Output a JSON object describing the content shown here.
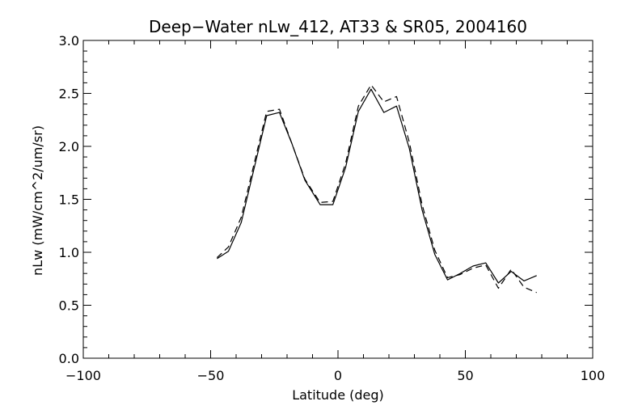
{
  "chart_data": {
    "type": "line",
    "title": "Deep−Water nLw_412, AT33 & SR05, 2004160",
    "xlabel": "Latitude (deg)",
    "ylabel": "nLw (mW/cm^2/um/sr)",
    "xlim": [
      -100,
      100
    ],
    "ylim": [
      0.0,
      3.0
    ],
    "x_ticks": [
      -100,
      -50,
      0,
      50,
      100
    ],
    "x_tick_labels": [
      "−100",
      "−50",
      "0",
      "50",
      "100"
    ],
    "x_minor_step": 10,
    "y_ticks": [
      0.0,
      0.5,
      1.0,
      1.5,
      2.0,
      2.5,
      3.0
    ],
    "y_tick_labels": [
      "0.0",
      "0.5",
      "1.0",
      "1.5",
      "2.0",
      "2.5",
      "3.0"
    ],
    "y_minor_step": 0.1,
    "grid": false,
    "series": [
      {
        "style": "solid",
        "color": "#000000",
        "x": [
          -47.5,
          -43,
          -38,
          -28,
          -23,
          -18,
          -13,
          -7,
          -2,
          3,
          8,
          13,
          18,
          23,
          28,
          33,
          38,
          43,
          48,
          53,
          58,
          63,
          68,
          73,
          78
        ],
        "y": [
          0.94,
          1.01,
          1.28,
          2.29,
          2.32,
          2.02,
          1.68,
          1.45,
          1.45,
          1.8,
          2.33,
          2.54,
          2.32,
          2.38,
          1.98,
          1.4,
          0.98,
          0.74,
          0.8,
          0.87,
          0.9,
          0.71,
          0.82,
          0.73,
          0.78
        ]
      },
      {
        "style": "dashed",
        "color": "#000000",
        "x": [
          -47.5,
          -43,
          -38,
          -28,
          -23,
          -18,
          -13,
          -7,
          -2,
          3,
          8,
          13,
          18,
          23,
          28,
          33,
          38,
          43,
          48,
          53,
          58,
          63,
          68,
          73,
          78
        ],
        "y": [
          0.95,
          1.05,
          1.33,
          2.33,
          2.35,
          2.02,
          1.69,
          1.47,
          1.48,
          1.84,
          2.38,
          2.58,
          2.42,
          2.47,
          2.04,
          1.45,
          1.02,
          0.76,
          0.79,
          0.85,
          0.88,
          0.66,
          0.84,
          0.67,
          0.62
        ]
      }
    ]
  }
}
